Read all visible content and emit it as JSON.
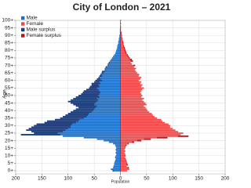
{
  "chart_data": {
    "type": "pyramid",
    "title": "City of London – 2021",
    "y_label": "Age",
    "x_label": "Population",
    "categories": [
      "0+",
      null,
      null,
      null,
      null,
      "5+",
      null,
      null,
      null,
      null,
      "10+",
      null,
      null,
      null,
      null,
      "15+",
      null,
      null,
      null,
      null,
      "20+",
      null,
      null,
      null,
      null,
      "25+",
      null,
      null,
      null,
      null,
      "30+",
      null,
      null,
      null,
      null,
      "35+",
      null,
      null,
      null,
      null,
      "40+",
      null,
      null,
      null,
      null,
      "45+",
      null,
      null,
      null,
      null,
      "50+",
      null,
      null,
      null,
      null,
      "55+",
      null,
      null,
      null,
      null,
      "60+",
      null,
      null,
      null,
      null,
      "65+",
      null,
      null,
      null,
      null,
      "70+",
      null,
      null,
      null,
      null,
      "75+",
      null,
      null,
      null,
      null,
      "80+",
      null,
      null,
      null,
      null,
      "85+",
      null,
      null,
      null,
      null,
      "90+",
      null,
      null,
      null,
      null,
      "95+",
      null,
      null,
      null,
      null,
      "100+"
    ],
    "series": [
      {
        "name": "Male",
        "color": "#1a6fc9",
        "values": [
          15,
          18,
          14,
          13,
          12,
          12,
          11,
          10,
          9,
          10,
          9,
          8,
          9,
          8,
          9,
          8,
          9,
          10,
          14,
          22,
          32,
          45,
          70,
          110,
          190,
          165,
          170,
          180,
          175,
          170,
          165,
          160,
          145,
          140,
          125,
          115,
          110,
          105,
          100,
          95,
          90,
          85,
          80,
          85,
          90,
          95,
          100,
          95,
          90,
          85,
          80,
          75,
          72,
          70,
          65,
          60,
          58,
          55,
          55,
          50,
          48,
          45,
          42,
          40,
          38,
          36,
          35,
          30,
          30,
          28,
          25,
          24,
          22,
          20,
          18,
          16,
          14,
          12,
          10,
          9,
          8,
          7,
          6,
          6,
          5,
          4,
          4,
          3,
          3,
          2,
          2,
          1,
          1,
          1,
          1,
          0,
          0,
          0,
          0,
          0,
          0
        ]
      },
      {
        "name": "Female",
        "color": "#f04848",
        "values": [
          13,
          17,
          16,
          12,
          14,
          13,
          12,
          11,
          10,
          9,
          10,
          9,
          8,
          9,
          8,
          9,
          10,
          12,
          16,
          26,
          40,
          58,
          90,
          130,
          115,
          120,
          110,
          105,
          100,
          95,
          95,
          92,
          85,
          80,
          78,
          70,
          65,
          62,
          60,
          55,
          52,
          50,
          48,
          45,
          50,
          48,
          45,
          42,
          45,
          40,
          42,
          40,
          38,
          40,
          42,
          45,
          40,
          42,
          38,
          40,
          35,
          38,
          40,
          35,
          36,
          32,
          30,
          28,
          30,
          26,
          28,
          22,
          20,
          24,
          22,
          18,
          16,
          14,
          12,
          11,
          10,
          9,
          8,
          7,
          6,
          6,
          5,
          4,
          4,
          3,
          3,
          2,
          2,
          1,
          1,
          1,
          1,
          0,
          1,
          0,
          1
        ]
      }
    ],
    "surplus": [
      {
        "name": "Male surplus",
        "color": "#1f3c78"
      },
      {
        "name": "Female surplus",
        "color": "#c0101c"
      }
    ],
    "xlim": [
      -200,
      200
    ],
    "xticks": [
      {
        "value": -200,
        "label": "200"
      },
      {
        "value": -150,
        "label": "150"
      },
      {
        "value": -100,
        "label": "100"
      },
      {
        "value": -50,
        "label": "50"
      },
      0,
      50,
      100,
      150,
      200
    ],
    "grid": true
  }
}
